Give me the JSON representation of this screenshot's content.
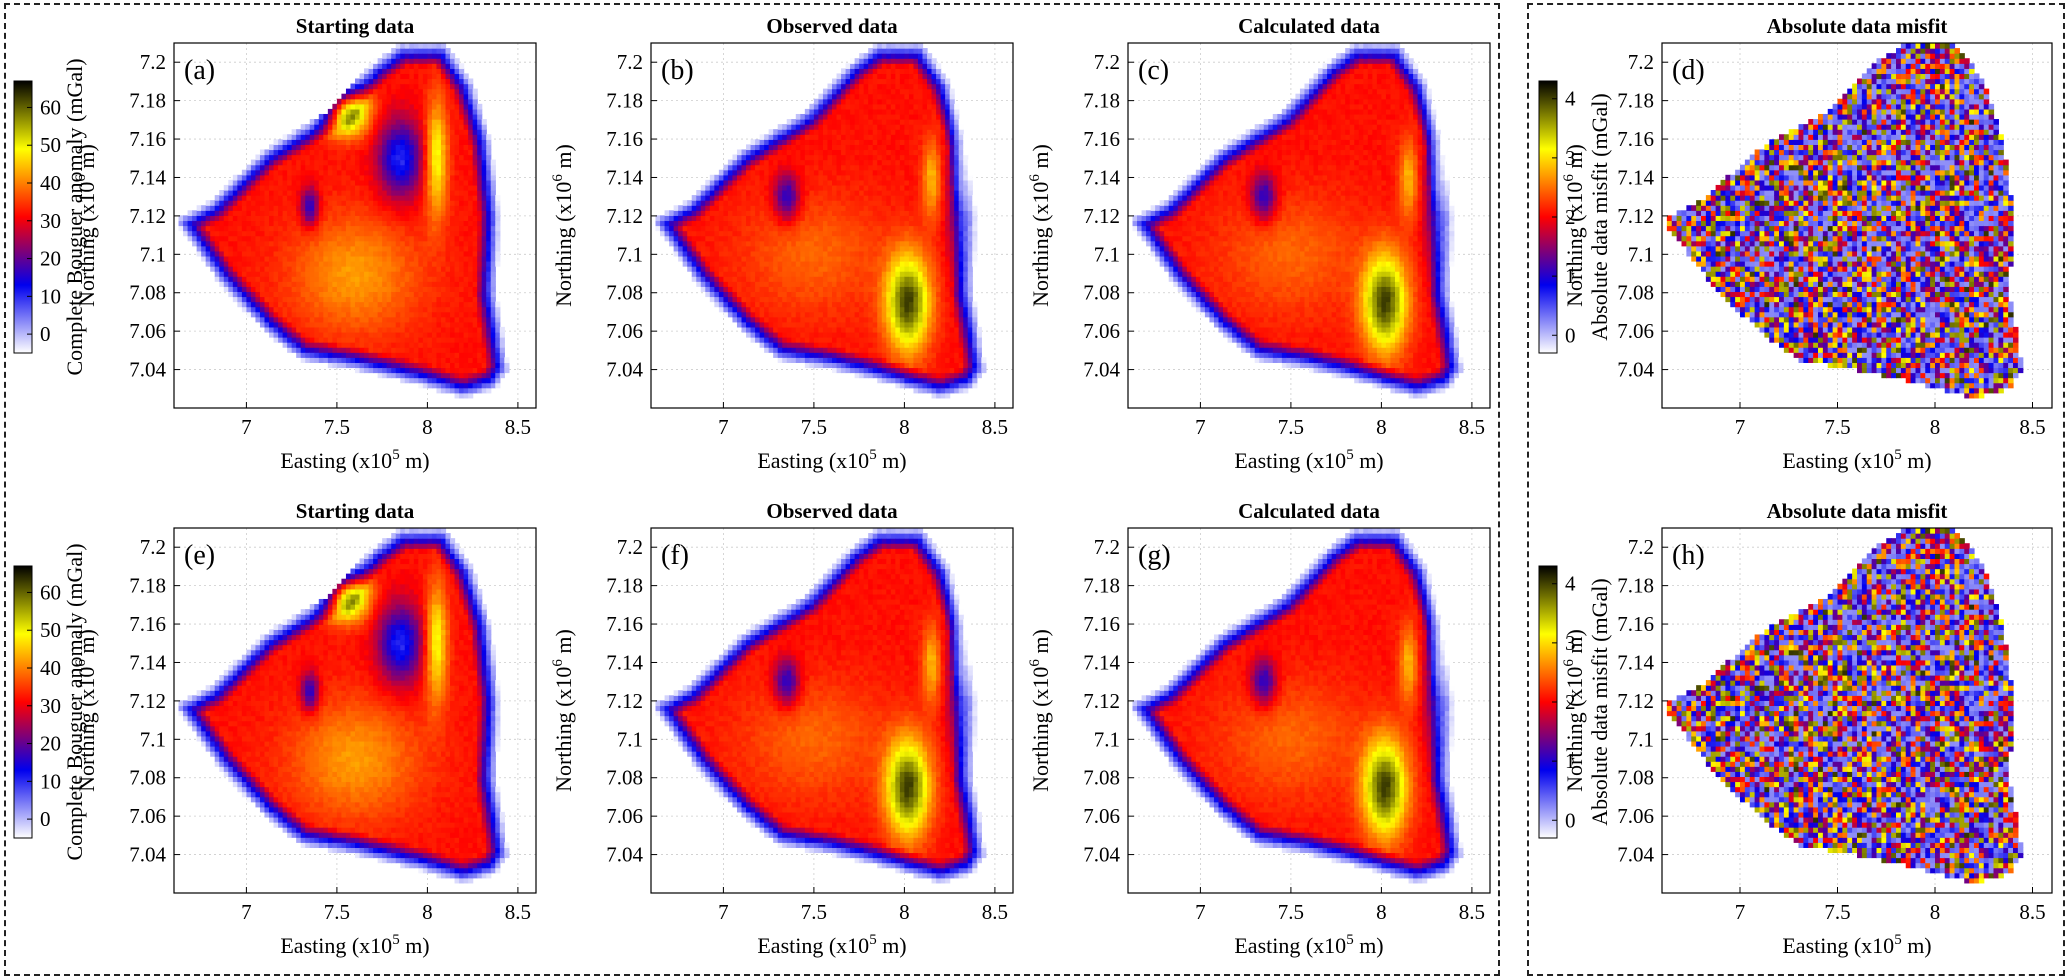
{
  "chart_data": {
    "type": "heatmap",
    "grid": true,
    "x_range": [
      6.6,
      8.6
    ],
    "y_range": [
      7.02,
      7.21
    ],
    "x_ticks": [
      7,
      7.5,
      8,
      8.5
    ],
    "y_ticks": [
      7.04,
      7.06,
      7.08,
      7.1,
      7.12,
      7.14,
      7.16,
      7.18,
      7.2
    ],
    "colormap": [
      "#ffffff",
      "#0000ee",
      "#ff0000",
      "#ffff00",
      "#000000"
    ],
    "colorbars": {
      "anomaly": {
        "label": "Complete Bouguer anomaly (mGal)",
        "range": [
          -5,
          67
        ],
        "ticks": [
          0,
          10,
          20,
          30,
          40,
          50,
          60
        ]
      },
      "misfit": {
        "label": "Absolute data misfit  (mGal)",
        "range": [
          -0.3,
          4.3
        ],
        "ticks": [
          0,
          1,
          2,
          3,
          4
        ]
      }
    },
    "panels": [
      {
        "id": "a",
        "letter": "(a)",
        "title": "Starting data",
        "field": "starting",
        "colorbar": "anomaly"
      },
      {
        "id": "b",
        "letter": "(b)",
        "title": "Observed data",
        "field": "observed",
        "colorbar": null
      },
      {
        "id": "c",
        "letter": "(c)",
        "title": "Calculated data",
        "field": "calculated",
        "colorbar": null
      },
      {
        "id": "d",
        "letter": "(d)",
        "title": "Absolute data misfit",
        "field": "misfit",
        "colorbar": "misfit"
      },
      {
        "id": "e",
        "letter": "(e)",
        "title": "Starting data",
        "field": "starting",
        "colorbar": "anomaly"
      },
      {
        "id": "f",
        "letter": "(f)",
        "title": "Observed data",
        "field": "observed",
        "colorbar": null
      },
      {
        "id": "g",
        "letter": "(g)",
        "title": "Calculated data",
        "field": "calculated",
        "colorbar": null
      },
      {
        "id": "h",
        "letter": "(h)",
        "title": "Absolute data misfit",
        "field": "misfit",
        "colorbar": "misfit"
      }
    ]
  },
  "axes": {
    "xlabel_main": "Easting (x10",
    "xlabel_exp": "5",
    "xlabel_unit": " m)",
    "ylabel_main": "Northing (x10",
    "ylabel_exp": "6",
    "ylabel_unit": " m)"
  }
}
